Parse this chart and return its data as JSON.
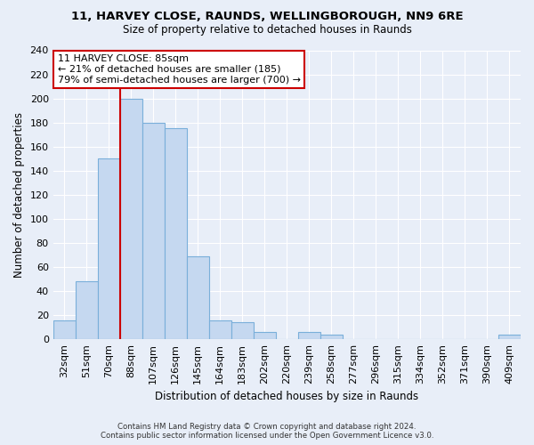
{
  "title_line1": "11, HARVEY CLOSE, RAUNDS, WELLINGBOROUGH, NN9 6RE",
  "title_line2": "Size of property relative to detached houses in Raunds",
  "xlabel": "Distribution of detached houses by size in Raunds",
  "ylabel": "Number of detached properties",
  "bin_labels": [
    "32sqm",
    "51sqm",
    "70sqm",
    "88sqm",
    "107sqm",
    "126sqm",
    "145sqm",
    "164sqm",
    "183sqm",
    "202sqm",
    "220sqm",
    "239sqm",
    "258sqm",
    "277sqm",
    "296sqm",
    "315sqm",
    "334sqm",
    "352sqm",
    "371sqm",
    "390sqm",
    "409sqm"
  ],
  "bar_heights": [
    16,
    48,
    150,
    200,
    180,
    175,
    69,
    16,
    14,
    6,
    0,
    6,
    4,
    0,
    0,
    0,
    0,
    0,
    0,
    0,
    4
  ],
  "bar_color": "#c5d8f0",
  "bar_edge_color": "#7aafda",
  "vline_color": "#cc0000",
  "annotation_text": "11 HARVEY CLOSE: 85sqm\n← 21% of detached houses are smaller (185)\n79% of semi-detached houses are larger (700) →",
  "annotation_box_color": "#ffffff",
  "annotation_box_edge": "#cc0000",
  "ylim": [
    0,
    240
  ],
  "yticks": [
    0,
    20,
    40,
    60,
    80,
    100,
    120,
    140,
    160,
    180,
    200,
    220,
    240
  ],
  "footer_line1": "Contains HM Land Registry data © Crown copyright and database right 2024.",
  "footer_line2": "Contains public sector information licensed under the Open Government Licence v3.0.",
  "background_color": "#e8eef8",
  "plot_bg_color": "#e8eef8",
  "grid_color": "#ffffff"
}
